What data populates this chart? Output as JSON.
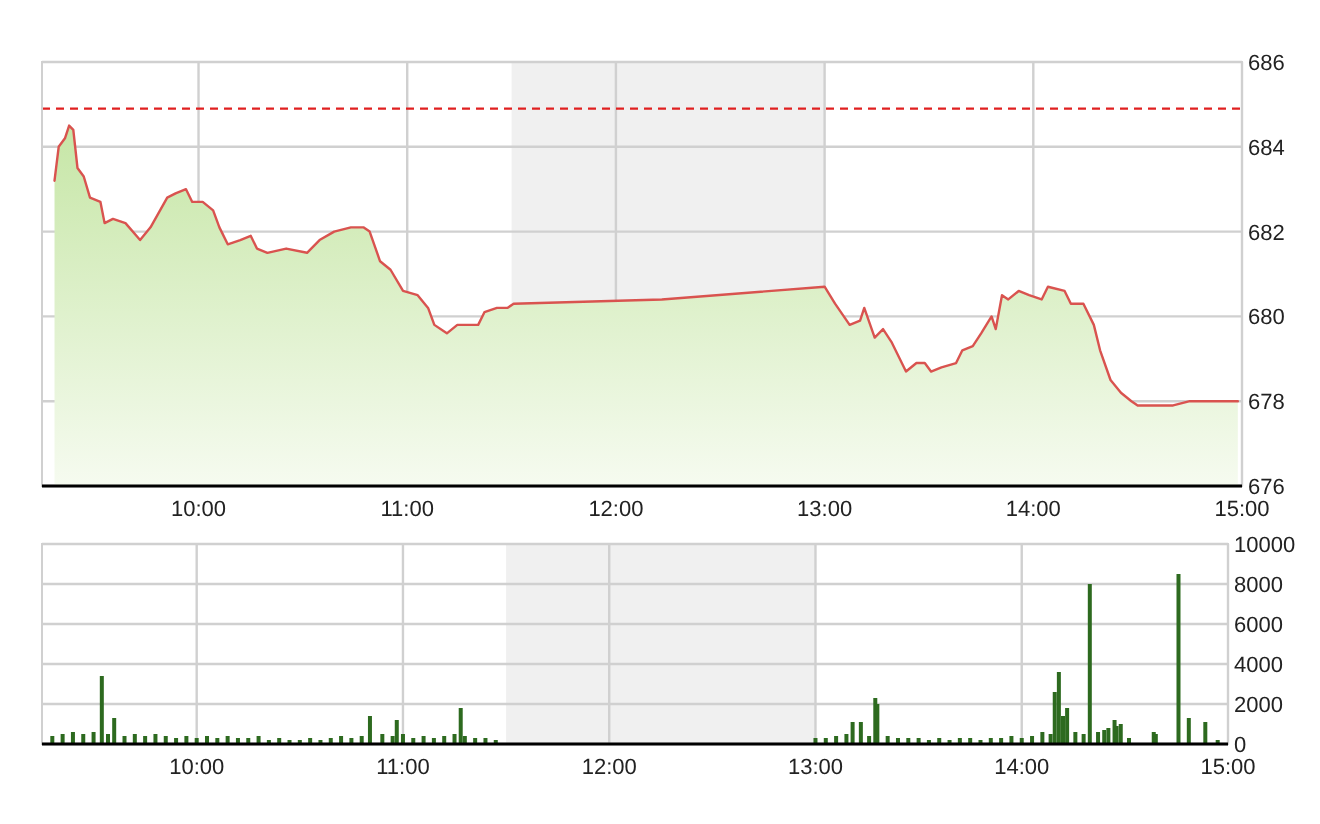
{
  "chart_data": [
    {
      "type": "area",
      "xlim": [
        9.25,
        15
      ],
      "xticks": [
        {
          "value": 10,
          "label": "10:00"
        },
        {
          "value": 11,
          "label": "11:00"
        },
        {
          "value": 12,
          "label": "12:00"
        },
        {
          "value": 13,
          "label": "13:00"
        },
        {
          "value": 14,
          "label": "14:00"
        },
        {
          "value": 15,
          "label": "15:00"
        }
      ],
      "ylim": [
        676,
        686
      ],
      "yticks": [
        676,
        678,
        680,
        682,
        684,
        686
      ],
      "grid": true,
      "ref_lines": [
        {
          "axis": "y",
          "value": 684.9,
          "color": "#e02020",
          "line_style": "dashed"
        }
      ],
      "bands": [
        {
          "axis": "x",
          "from": 11.5,
          "to": 13,
          "color": "#f0f0f0"
        }
      ],
      "series": [
        {
          "color": "#d9534f",
          "x": [
            9.31,
            9.33,
            9.36,
            9.38,
            9.4,
            9.42,
            9.45,
            9.48,
            9.53,
            9.55,
            9.59,
            9.65,
            9.72,
            9.77,
            9.85,
            9.89,
            9.94,
            9.97,
            10.02,
            10.07,
            10.1,
            10.14,
            10.2,
            10.25,
            10.28,
            10.33,
            10.42,
            10.52,
            10.58,
            10.65,
            10.73,
            10.79,
            10.82,
            10.87,
            10.92,
            10.98,
            11.05,
            11.1,
            11.13,
            11.19,
            11.24,
            11.29,
            11.34,
            11.37,
            11.43,
            11.48,
            11.51,
            12.22,
            13,
            13.05,
            13.12,
            13.17,
            13.19,
            13.24,
            13.28,
            13.32,
            13.39,
            13.44,
            13.48,
            13.51,
            13.56,
            13.63,
            13.66,
            13.71,
            13.75,
            13.8,
            13.82,
            13.85,
            13.88,
            13.93,
            13.98,
            14.04,
            14.07,
            14.15,
            14.18,
            14.24,
            14.29,
            14.32,
            14.37,
            14.42,
            14.47,
            14.5,
            14.67,
            14.75,
            14.98
          ],
          "values": [
            683.2,
            684,
            684.2,
            684.5,
            684.4,
            683.5,
            683.3,
            682.8,
            682.7,
            682.2,
            682.3,
            682.2,
            681.8,
            682.1,
            682.8,
            682.9,
            683,
            682.7,
            682.7,
            682.5,
            682.1,
            681.7,
            681.8,
            681.9,
            681.6,
            681.5,
            681.6,
            681.5,
            681.8,
            682,
            682.1,
            682.1,
            682,
            681.3,
            681.1,
            680.6,
            680.5,
            680.2,
            679.8,
            679.6,
            679.8,
            679.8,
            679.8,
            680.1,
            680.2,
            680.2,
            680.3,
            680.4,
            680.7,
            680.3,
            679.8,
            679.9,
            680.2,
            679.5,
            679.7,
            679.4,
            678.7,
            678.9,
            678.9,
            678.7,
            678.8,
            678.9,
            679.2,
            679.3,
            679.6,
            680,
            679.7,
            680.5,
            680.4,
            680.6,
            680.5,
            680.4,
            680.7,
            680.6,
            680.3,
            680.3,
            679.8,
            679.2,
            678.5,
            678.2,
            678,
            677.9,
            677.9,
            678,
            678
          ]
        }
      ]
    },
    {
      "type": "bar",
      "xlim": [
        9.25,
        15
      ],
      "xticks": [
        {
          "value": 10,
          "label": "10:00"
        },
        {
          "value": 11,
          "label": "11:00"
        },
        {
          "value": 12,
          "label": "12:00"
        },
        {
          "value": 13,
          "label": "13:00"
        },
        {
          "value": 14,
          "label": "14:00"
        },
        {
          "value": 15,
          "label": "15:00"
        }
      ],
      "ylim": [
        0,
        10000
      ],
      "yticks": [
        0,
        2000,
        4000,
        6000,
        8000,
        10000
      ],
      "grid": true,
      "bands": [
        {
          "axis": "x",
          "from": 11.5,
          "to": 13,
          "color": "#f0f0f0"
        }
      ],
      "series": [
        {
          "color": "#2d6a1f",
          "x": [
            9.3,
            9.35,
            9.4,
            9.45,
            9.5,
            9.54,
            9.57,
            9.6,
            9.65,
            9.7,
            9.75,
            9.8,
            9.85,
            9.9,
            9.95,
            10,
            10.05,
            10.1,
            10.15,
            10.2,
            10.25,
            10.3,
            10.35,
            10.4,
            10.45,
            10.5,
            10.55,
            10.6,
            10.65,
            10.7,
            10.75,
            10.8,
            10.84,
            10.9,
            10.95,
            10.97,
            11,
            11.05,
            11.1,
            11.15,
            11.2,
            11.25,
            11.28,
            11.3,
            11.35,
            11.4,
            11.45,
            13,
            13.05,
            13.1,
            13.15,
            13.18,
            13.22,
            13.26,
            13.29,
            13.3,
            13.35,
            13.4,
            13.45,
            13.5,
            13.55,
            13.6,
            13.65,
            13.7,
            13.75,
            13.8,
            13.85,
            13.9,
            13.95,
            14,
            14.05,
            14.1,
            14.14,
            14.16,
            14.18,
            14.2,
            14.22,
            14.26,
            14.3,
            14.33,
            14.37,
            14.4,
            14.42,
            14.45,
            14.46,
            14.48,
            14.52,
            14.64,
            14.65,
            14.76,
            14.81,
            14.89,
            14.95
          ],
          "values": [
            400,
            500,
            600,
            500,
            600,
            3400,
            500,
            1300,
            400,
            500,
            400,
            500,
            400,
            300,
            400,
            300,
            400,
            300,
            400,
            300,
            300,
            400,
            200,
            300,
            200,
            200,
            300,
            200,
            300,
            400,
            300,
            400,
            1400,
            500,
            400,
            1200,
            500,
            300,
            400,
            300,
            400,
            500,
            1800,
            400,
            300,
            300,
            200,
            300,
            300,
            400,
            500,
            1100,
            1100,
            400,
            2300,
            2000,
            400,
            300,
            300,
            300,
            200,
            300,
            200,
            300,
            300,
            200,
            300,
            300,
            400,
            300,
            400,
            600,
            500,
            2600,
            3600,
            1400,
            1800,
            600,
            500,
            8000,
            600,
            700,
            800,
            1200,
            900,
            1000,
            300,
            600,
            500,
            8500,
            1300,
            1100,
            200
          ]
        }
      ]
    }
  ]
}
